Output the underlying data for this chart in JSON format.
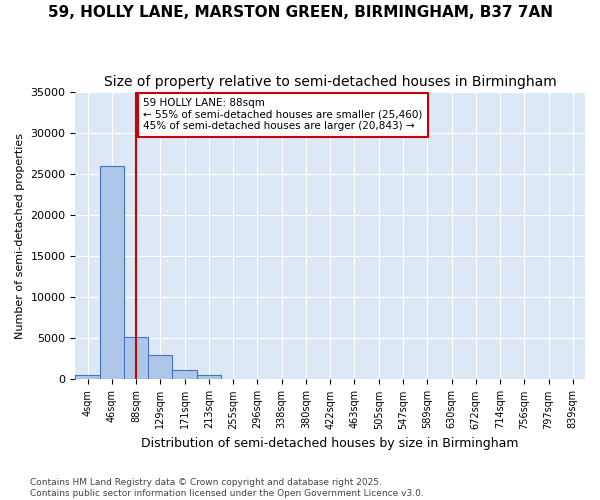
{
  "title": "59, HOLLY LANE, MARSTON GREEN, BIRMINGHAM, B37 7AN",
  "subtitle": "Size of property relative to semi-detached houses in Birmingham",
  "xlabel": "Distribution of semi-detached houses by size in Birmingham",
  "ylabel": "Number of semi-detached properties",
  "bin_labels": [
    "4sqm",
    "46sqm",
    "88sqm",
    "129sqm",
    "171sqm",
    "213sqm",
    "255sqm",
    "296sqm",
    "338sqm",
    "380sqm",
    "422sqm",
    "463sqm",
    "505sqm",
    "547sqm",
    "589sqm",
    "630sqm",
    "672sqm",
    "714sqm",
    "756sqm",
    "797sqm",
    "839sqm"
  ],
  "bar_values": [
    500,
    26000,
    5200,
    3000,
    1200,
    600,
    0,
    0,
    0,
    0,
    0,
    0,
    0,
    0,
    0,
    0,
    0,
    0,
    0,
    0,
    0
  ],
  "bar_color": "#aec6e8",
  "bar_edge_color": "#4472c4",
  "property_line_x": 2,
  "property_size": "88sqm",
  "annotation_text": "59 HOLLY LANE: 88sqm\n← 55% of semi-detached houses are smaller (25,460)\n45% of semi-detached houses are larger (20,843) →",
  "annotation_box_color": "#ffffff",
  "annotation_border_color": "#cc0000",
  "vline_color": "#cc0000",
  "ylim": [
    0,
    35000
  ],
  "yticks": [
    0,
    5000,
    10000,
    15000,
    20000,
    25000,
    30000,
    35000
  ],
  "background_color": "#dce8f5",
  "footer_text": "Contains HM Land Registry data © Crown copyright and database right 2025.\nContains public sector information licensed under the Open Government Licence v3.0.",
  "title_fontsize": 11,
  "subtitle_fontsize": 10
}
